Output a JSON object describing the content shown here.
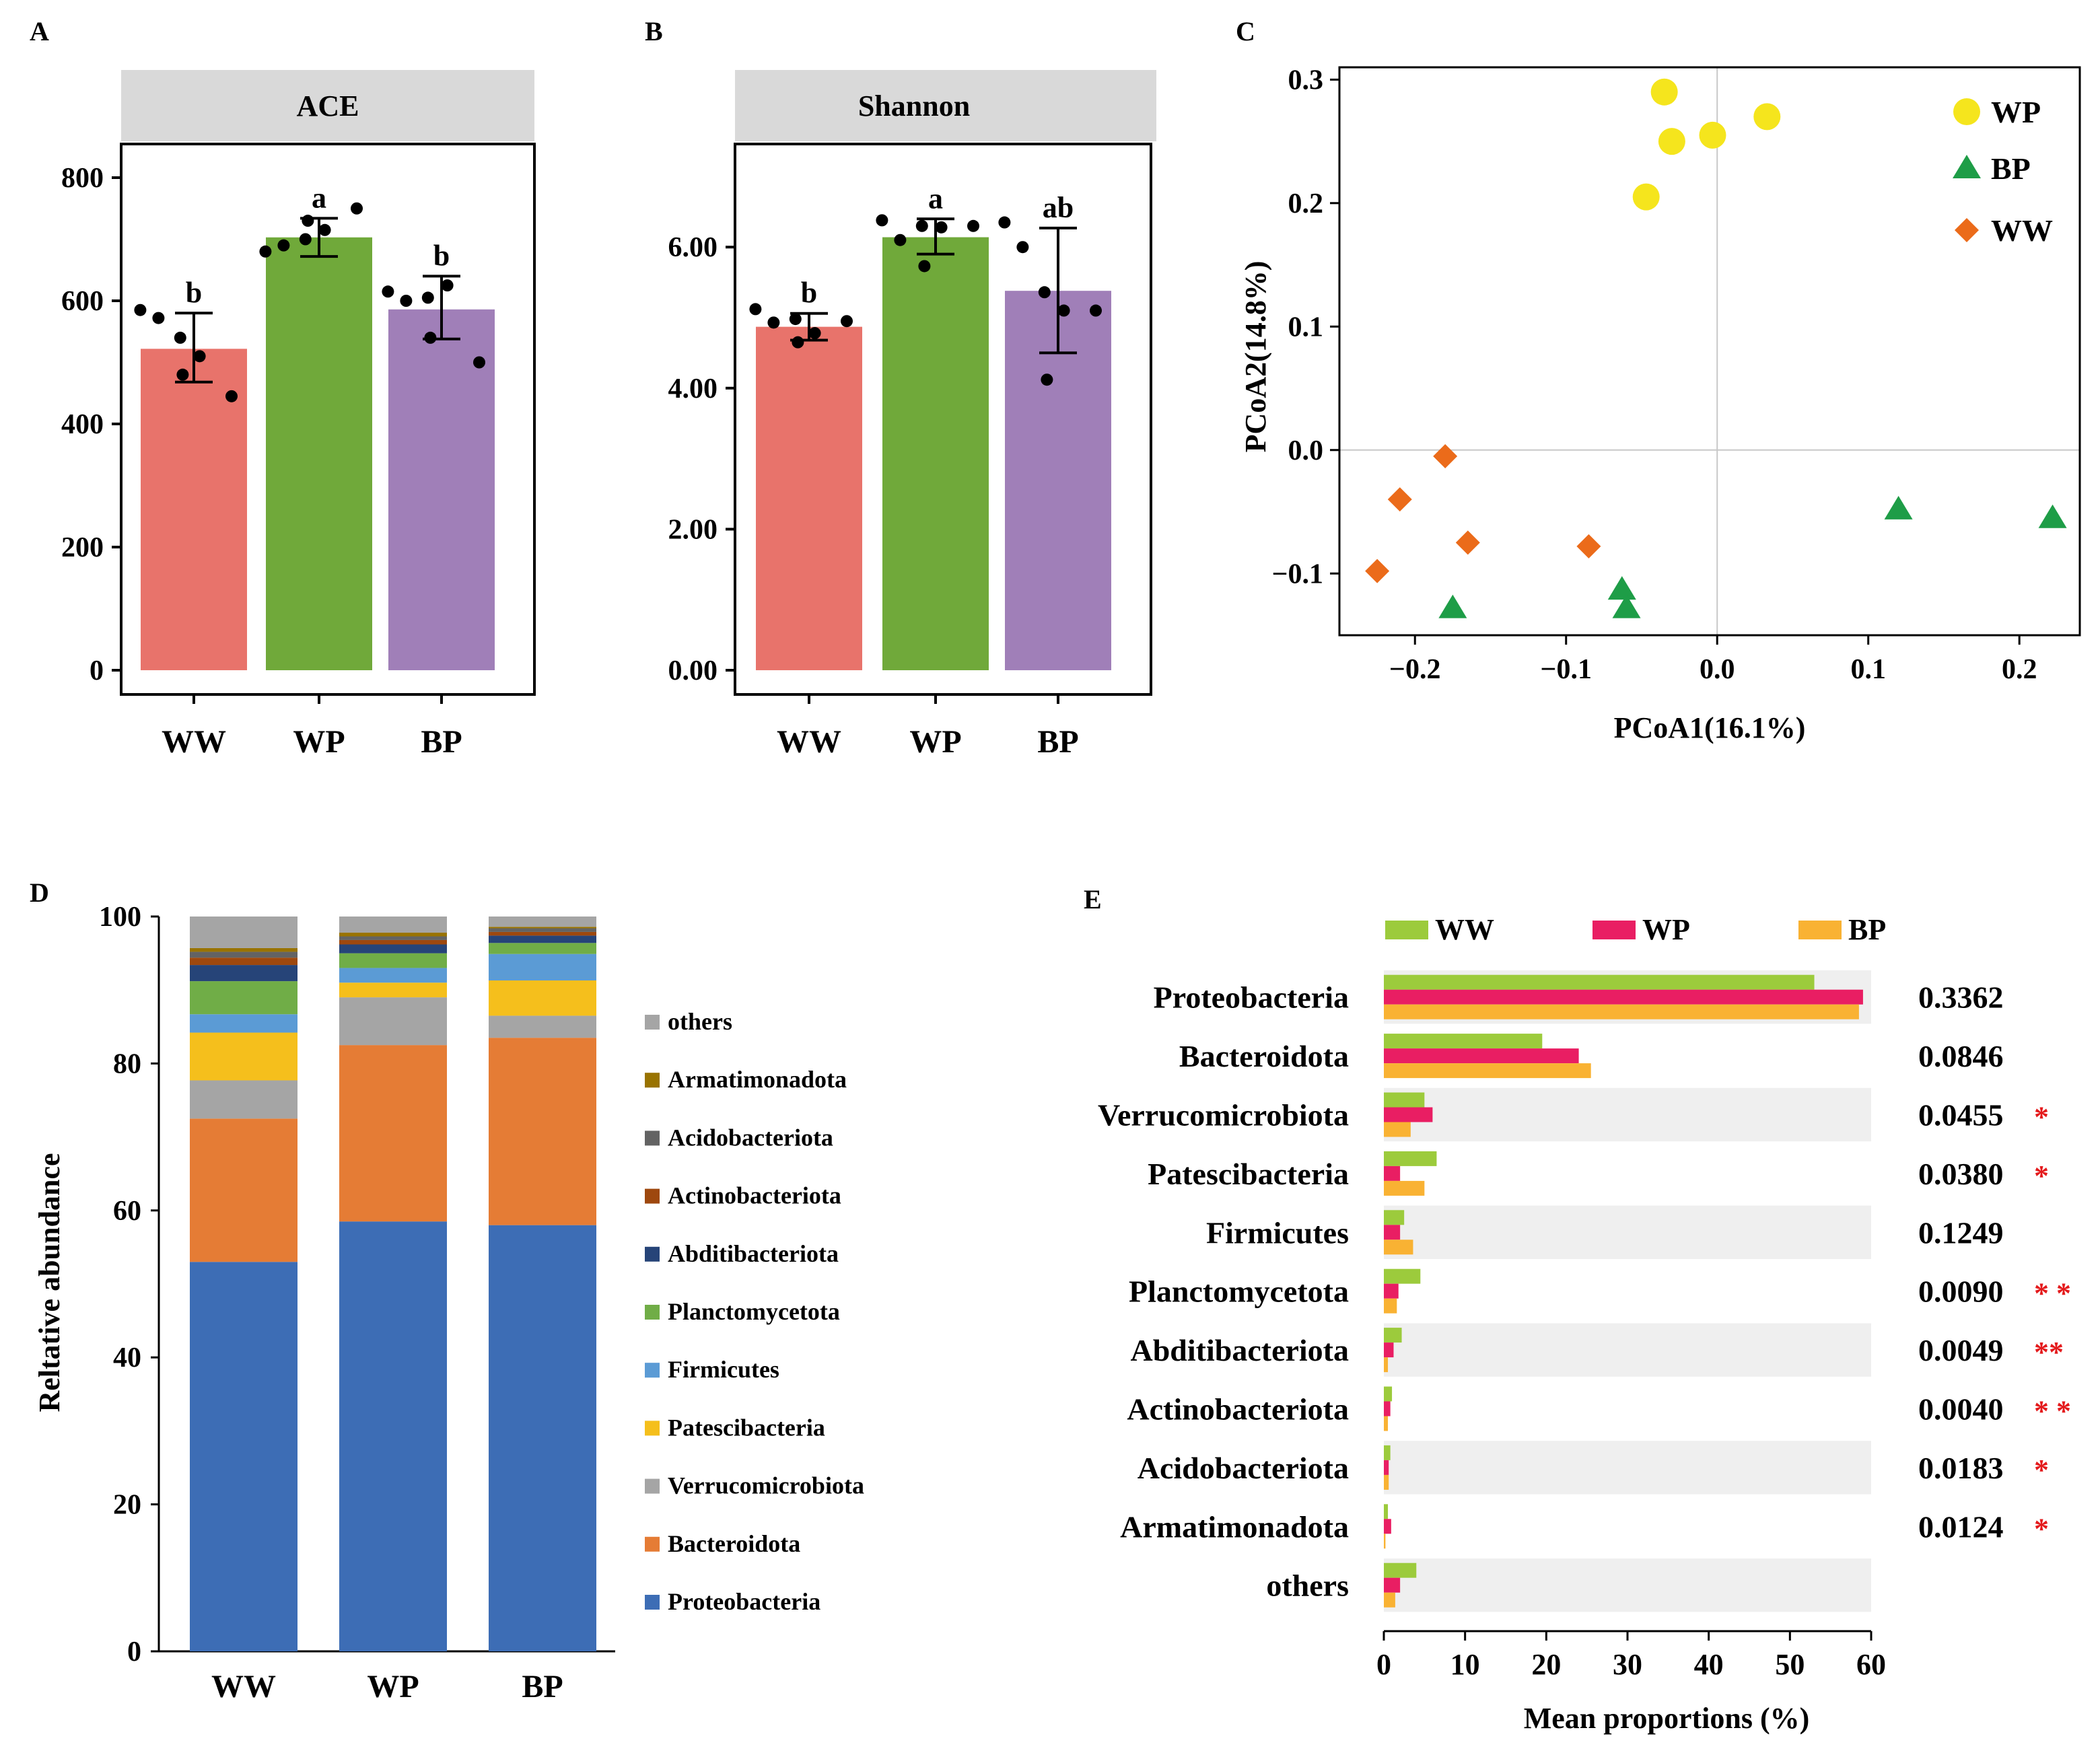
{
  "colors": {
    "ww": "#e8736b",
    "wp": "#70a93a",
    "bp": "#a07fb8",
    "pcoa_wp": "#f5e51d",
    "pcoa_bp": "#1e9d47",
    "pcoa_ww": "#eb6b1a",
    "e_ww": "#9ccb3c",
    "e_wp": "#e91e63",
    "e_bp": "#f9b233",
    "row_band": "#efefef",
    "strip": "#d9d9d9",
    "star": "#e41a1c"
  },
  "chart_data": [
    {
      "panel": "A",
      "type": "bar",
      "title": "ACE",
      "categories": [
        "WW",
        "WP",
        "BP"
      ],
      "values": [
        522,
        703,
        586
      ],
      "error_low": [
        468,
        672,
        538
      ],
      "error_high": [
        580,
        734,
        640
      ],
      "letters": [
        "b",
        "a",
        "b"
      ],
      "points": [
        [
          585,
          572,
          540,
          510,
          480,
          445
        ],
        [
          680,
          690,
          700,
          715,
          730,
          750
        ],
        [
          615,
          600,
          605,
          625,
          540,
          500
        ]
      ],
      "ylim": [
        0,
        800
      ],
      "yticks": [
        "0",
        "200",
        "400",
        "600",
        "800"
      ]
    },
    {
      "panel": "B",
      "type": "bar",
      "title": "Shannon",
      "categories": [
        "WW",
        "WP",
        "BP"
      ],
      "values": [
        4.87,
        6.14,
        5.38
      ],
      "error_low": [
        4.68,
        5.9,
        4.5
      ],
      "error_high": [
        5.06,
        6.4,
        6.27
      ],
      "letters": [
        "b",
        "a",
        "ab"
      ],
      "points": [
        [
          5.12,
          4.93,
          4.98,
          4.78,
          4.65,
          4.95
        ],
        [
          6.38,
          6.1,
          6.3,
          6.28,
          5.73,
          6.3
        ],
        [
          6.35,
          6.0,
          5.36,
          5.1,
          4.12,
          5.1
        ]
      ],
      "ylim": [
        0,
        7.5
      ],
      "yticks": [
        "0.00",
        "2.00",
        "4.00",
        "6.00"
      ]
    },
    {
      "panel": "C",
      "type": "scatter",
      "xlabel": "PCoA1(16.1%)",
      "ylabel": "PCoA2(14.8%)",
      "xlim": [
        -0.25,
        0.24
      ],
      "ylim": [
        -0.15,
        0.31
      ],
      "xticks": [
        "−0.2",
        "−0.1",
        "0.0",
        "0.1",
        "0.2"
      ],
      "yticks": [
        "−0.1",
        "0.0",
        "0.1",
        "0.2",
        "0.3"
      ],
      "legend": [
        "WP",
        "BP",
        "WW"
      ],
      "series": [
        {
          "name": "WP",
          "marker": "circle",
          "points": [
            [
              -0.035,
              0.29
            ],
            [
              -0.03,
              0.25
            ],
            [
              -0.003,
              0.255
            ],
            [
              0.033,
              0.27
            ],
            [
              -0.047,
              0.205
            ]
          ]
        },
        {
          "name": "BP",
          "marker": "triangle",
          "points": [
            [
              0.12,
              -0.048
            ],
            [
              0.222,
              -0.055
            ],
            [
              -0.063,
              -0.113
            ],
            [
              -0.06,
              -0.128
            ],
            [
              -0.175,
              -0.128
            ]
          ]
        },
        {
          "name": "WW",
          "marker": "diamond",
          "points": [
            [
              -0.18,
              -0.005
            ],
            [
              -0.21,
              -0.04
            ],
            [
              -0.165,
              -0.075
            ],
            [
              -0.085,
              -0.078
            ],
            [
              -0.225,
              -0.098
            ]
          ]
        }
      ]
    },
    {
      "panel": "D",
      "type": "bar",
      "stacked": true,
      "ylabel": "Reltative abundance",
      "categories": [
        "WW",
        "WP",
        "BP"
      ],
      "ylim": [
        0,
        100
      ],
      "yticks": [
        "0",
        "20",
        "40",
        "60",
        "80",
        "100"
      ],
      "series": [
        {
          "name": "Proteobacteria",
          "color": "#3d6db5",
          "values": [
            53,
            58.5,
            58
          ]
        },
        {
          "name": "Bacteroidota",
          "color": "#e57c35",
          "values": [
            19.5,
            24,
            25.5
          ]
        },
        {
          "name": "Verrucomicrobiota",
          "color": "#a5a5a5",
          "values": [
            5.2,
            6.5,
            3
          ]
        },
        {
          "name": "Patescibacteria",
          "color": "#f5bf1c",
          "values": [
            6.5,
            2,
            4.8
          ]
        },
        {
          "name": "Firmicutes",
          "color": "#5b9bd5",
          "values": [
            2.5,
            2,
            3.6
          ]
        },
        {
          "name": "Planctomycetota",
          "color": "#70ad47",
          "values": [
            4.5,
            2,
            1.5
          ]
        },
        {
          "name": "Abditibacteriota",
          "color": "#264478",
          "values": [
            2.2,
            1.2,
            1
          ]
        },
        {
          "name": "Actinobacteriota",
          "color": "#9e480e",
          "values": [
            1,
            0.6,
            0.5
          ]
        },
        {
          "name": "Acidobacteriota",
          "color": "#636363",
          "values": [
            0.8,
            0.5,
            0.5
          ]
        },
        {
          "name": "Armatimonadota",
          "color": "#997300",
          "values": [
            0.5,
            0.5,
            0.2
          ]
        },
        {
          "name": "others",
          "color": "#a5a5a5",
          "values": [
            4.3,
            2.2,
            1.4
          ]
        }
      ],
      "legend_order": [
        "others",
        "Armatimonadota",
        "Acidobacteriota",
        "Actinobacteriota",
        "Abditibacteriota",
        "Planctomycetota",
        "Firmicutes",
        "Patescibacteria",
        "Verrucomicrobiota",
        "Bacteroidota",
        "Proteobacteria"
      ]
    },
    {
      "panel": "E",
      "type": "bar",
      "orientation": "horizontal",
      "xlabel": "Mean proportions (%)",
      "xlim": [
        0,
        60
      ],
      "xticks": [
        "0",
        "10",
        "20",
        "30",
        "40",
        "50",
        "60"
      ],
      "legend": [
        "WW",
        "WP",
        "BP"
      ],
      "categories": [
        "Proteobacteria",
        "Bacteroidota",
        "Verrucomicrobiota",
        "Patescibacteria",
        "Firmicutes",
        "Planctomycetota",
        "Abditibacteriota",
        "Actinobacteriota",
        "Acidobacteriota",
        "Armatimonadota",
        "others"
      ],
      "series": [
        {
          "name": "WW",
          "values": [
            53,
            19.5,
            5,
            6.5,
            2.5,
            4.5,
            2.2,
            1,
            0.8,
            0.5,
            4
          ]
        },
        {
          "name": "WP",
          "values": [
            59,
            24,
            6,
            2,
            2,
            1.8,
            1.2,
            0.8,
            0.6,
            0.9,
            2
          ]
        },
        {
          "name": "BP",
          "values": [
            58.5,
            25.5,
            3.3,
            5,
            3.6,
            1.6,
            0.5,
            0.5,
            0.6,
            0.2,
            1.4
          ]
        }
      ],
      "pvalues": [
        "0.3362",
        "0.0846",
        "0.0455",
        "0.0380",
        "0.1249",
        "0.0090",
        "0.0049",
        "0.0040",
        "0.0183",
        "0.0124",
        ""
      ],
      "significance": [
        "",
        "",
        "*",
        "*",
        "",
        "* *",
        "**",
        "* *",
        "*",
        "*",
        ""
      ]
    }
  ],
  "panel_labels": [
    "A",
    "B",
    "C",
    "D",
    "E"
  ]
}
